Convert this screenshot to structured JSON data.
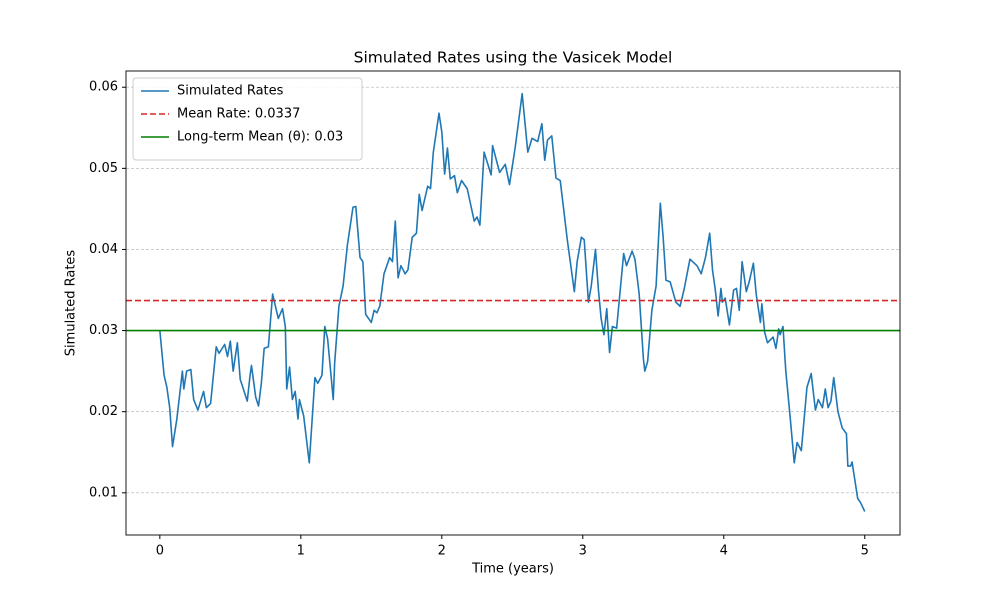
{
  "chart_data": {
    "type": "line",
    "title": "Simulated Rates using the Vasicek Model",
    "xlabel": "Time (years)",
    "ylabel": "Simulated Rates",
    "xlim": [
      -0.24,
      5.25
    ],
    "ylim": [
      0.0048,
      0.062
    ],
    "xticks": [
      0,
      1,
      2,
      3,
      4,
      5
    ],
    "yticks": [
      0.01,
      0.02,
      0.03,
      0.04,
      0.05,
      0.06
    ],
    "grid": "y",
    "legend": "upper left",
    "series": [
      {
        "name": "Simulated Rates",
        "color": "#1f77b4",
        "x": [
          0,
          0.03,
          0.05,
          0.07,
          0.09,
          0.12,
          0.16,
          0.17,
          0.19,
          0.22,
          0.24,
          0.27,
          0.31,
          0.33,
          0.36,
          0.4,
          0.42,
          0.46,
          0.48,
          0.5,
          0.52,
          0.55,
          0.57,
          0.62,
          0.64,
          0.65,
          0.68,
          0.7,
          0.72,
          0.74,
          0.77,
          0.8,
          0.84,
          0.87,
          0.89,
          0.9,
          0.92,
          0.94,
          0.96,
          0.98,
          0.99,
          1.02,
          1.06,
          1.1,
          1.12,
          1.15,
          1.17,
          1.19,
          1.23,
          1.24,
          1.27,
          1.3,
          1.33,
          1.37,
          1.39,
          1.42,
          1.44,
          1.46,
          1.5,
          1.52,
          1.54,
          1.56,
          1.59,
          1.63,
          1.65,
          1.67,
          1.69,
          1.71,
          1.74,
          1.76,
          1.79,
          1.82,
          1.84,
          1.86,
          1.9,
          1.92,
          1.94,
          1.98,
          2.0,
          2.02,
          2.04,
          2.06,
          2.09,
          2.11,
          2.14,
          2.18,
          2.23,
          2.25,
          2.27,
          2.3,
          2.35,
          2.36,
          2.41,
          2.45,
          2.48,
          2.52,
          2.57,
          2.61,
          2.64,
          2.68,
          2.71,
          2.73,
          2.75,
          2.78,
          2.81,
          2.84,
          2.89,
          2.94,
          2.96,
          2.99,
          3.01,
          3.04,
          3.06,
          3.09,
          3.11,
          3.13,
          3.15,
          3.17,
          3.19,
          3.21,
          3.24,
          3.29,
          3.31,
          3.35,
          3.37,
          3.4,
          3.43,
          3.44,
          3.46,
          3.49,
          3.52,
          3.55,
          3.57,
          3.59,
          3.62,
          3.66,
          3.69,
          3.72,
          3.76,
          3.81,
          3.84,
          3.87,
          3.9,
          3.92,
          3.94,
          3.96,
          3.98,
          3.99,
          4.01,
          4.04,
          4.07,
          4.09,
          4.11,
          4.13,
          4.16,
          4.18,
          4.21,
          4.23,
          4.26,
          4.27,
          4.29,
          4.31,
          4.35,
          4.37,
          4.39,
          4.4,
          4.42,
          4.44,
          4.47,
          4.5,
          4.52,
          4.55,
          4.59,
          4.62,
          4.65,
          4.67,
          4.7,
          4.72,
          4.74,
          4.76,
          4.78,
          4.81,
          4.84,
          4.87,
          4.88,
          4.9,
          4.91,
          4.95,
          4.97,
          5.0
        ],
        "values": [
          0.03,
          0.0245,
          0.023,
          0.0205,
          0.0157,
          0.019,
          0.025,
          0.0228,
          0.025,
          0.0252,
          0.0215,
          0.0202,
          0.0225,
          0.0205,
          0.021,
          0.028,
          0.0272,
          0.0283,
          0.0268,
          0.0287,
          0.025,
          0.0285,
          0.024,
          0.0213,
          0.0245,
          0.0257,
          0.0218,
          0.0207,
          0.0235,
          0.0278,
          0.028,
          0.0345,
          0.0315,
          0.0327,
          0.0305,
          0.0228,
          0.0255,
          0.0215,
          0.0225,
          0.0191,
          0.0215,
          0.0195,
          0.0137,
          0.0242,
          0.0235,
          0.0245,
          0.0305,
          0.029,
          0.0215,
          0.026,
          0.033,
          0.0355,
          0.0405,
          0.0452,
          0.0453,
          0.039,
          0.0385,
          0.032,
          0.031,
          0.0325,
          0.0322,
          0.033,
          0.037,
          0.039,
          0.0385,
          0.0435,
          0.0365,
          0.038,
          0.037,
          0.0375,
          0.0415,
          0.042,
          0.0468,
          0.0448,
          0.0478,
          0.0475,
          0.052,
          0.0568,
          0.0545,
          0.0493,
          0.0525,
          0.0487,
          0.0491,
          0.047,
          0.0485,
          0.0475,
          0.0435,
          0.044,
          0.043,
          0.052,
          0.0492,
          0.0528,
          0.0495,
          0.0505,
          0.048,
          0.0525,
          0.0592,
          0.052,
          0.0537,
          0.0533,
          0.0555,
          0.051,
          0.0535,
          0.054,
          0.0488,
          0.0485,
          0.0412,
          0.0348,
          0.0385,
          0.0415,
          0.0412,
          0.0335,
          0.0355,
          0.04,
          0.0352,
          0.0315,
          0.0295,
          0.0327,
          0.0273,
          0.0305,
          0.0303,
          0.0395,
          0.038,
          0.0398,
          0.0388,
          0.0345,
          0.0265,
          0.025,
          0.0262,
          0.0325,
          0.0355,
          0.0457,
          0.0415,
          0.0362,
          0.036,
          0.0335,
          0.033,
          0.0352,
          0.0388,
          0.038,
          0.037,
          0.039,
          0.042,
          0.0375,
          0.035,
          0.0318,
          0.0352,
          0.0335,
          0.034,
          0.0307,
          0.035,
          0.0352,
          0.0325,
          0.0385,
          0.0348,
          0.036,
          0.0383,
          0.0345,
          0.031,
          0.0333,
          0.0298,
          0.0285,
          0.0292,
          0.0278,
          0.0302,
          0.0295,
          0.0305,
          0.025,
          0.0195,
          0.0137,
          0.0162,
          0.0152,
          0.023,
          0.0247,
          0.0202,
          0.0215,
          0.0205,
          0.0228,
          0.0205,
          0.0213,
          0.0242,
          0.02,
          0.018,
          0.0173,
          0.0133,
          0.0133,
          0.0138,
          0.0093,
          0.0088,
          0.0077
        ]
      }
    ],
    "hlines": [
      {
        "name": "Mean Rate: 0.0337",
        "value": 0.0337,
        "color": "#d62728",
        "style": "dashed"
      },
      {
        "name": "Long-term Mean (θ): 0.03",
        "value": 0.03,
        "color": "#008000",
        "style": "solid"
      }
    ]
  }
}
